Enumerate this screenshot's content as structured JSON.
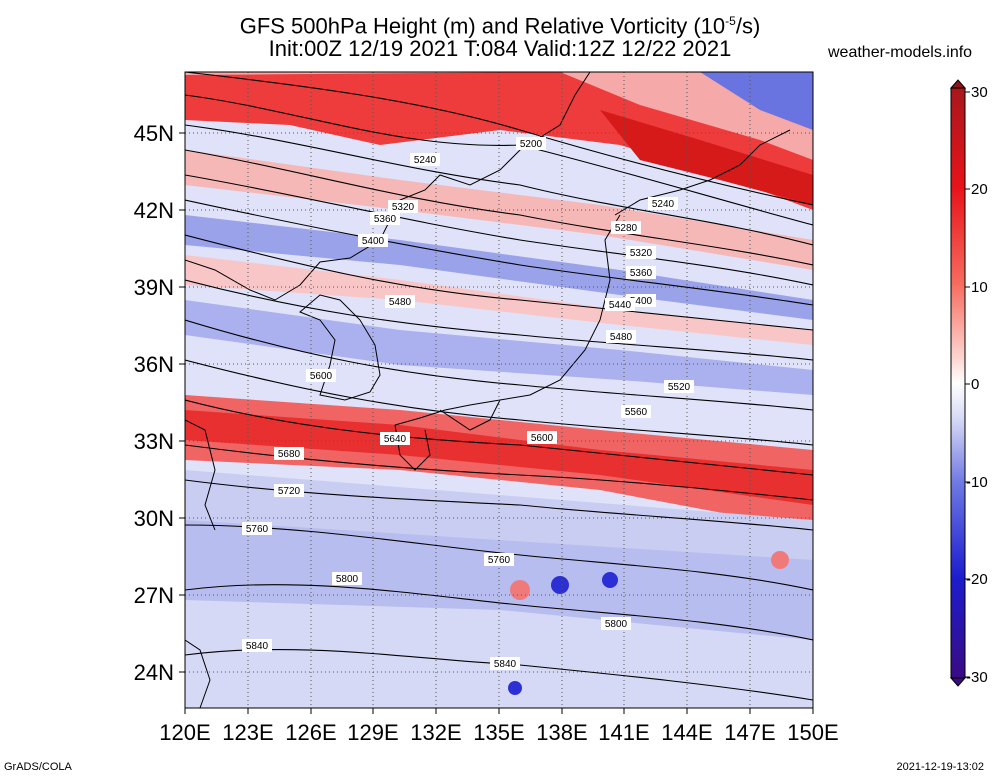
{
  "title": {
    "line1_prefix": "GFS 500hPa Height (m) and Relative Vorticity (10",
    "line1_exp": "-5",
    "line1_suffix": "/s)",
    "line2": "Init:00Z 12/19 2021 T:084 Valid:12Z 12/22 2021"
  },
  "site": "weather-models.info",
  "footer": {
    "left": "GrADS/COLA",
    "right": "2021-12-19-13:02"
  },
  "lat_labels": [
    "45N",
    "42N",
    "39N",
    "36N",
    "33N",
    "30N",
    "27N",
    "24N"
  ],
  "lon_labels": [
    "120E",
    "123E",
    "126E",
    "129E",
    "132E",
    "135E",
    "138E",
    "141E",
    "144E",
    "147E",
    "150E"
  ],
  "colorbar": {
    "ticks": [
      "30",
      "20",
      "10",
      "0",
      "-10",
      "-20",
      "-30"
    ],
    "colors": [
      "#b2182b",
      "#e31a1c",
      "#fb6a4a",
      "#fcbba1",
      "#ffffff",
      "#c6cbf0",
      "#7b83e6",
      "#2a2bd0",
      "#1a0f9a",
      "#3a0a7a"
    ]
  },
  "contours": {
    "labels": [
      "5200",
      "5240",
      "5240",
      "5280",
      "5320",
      "5320",
      "5360",
      "5360",
      "5400",
      "5400",
      "5440",
      "5480",
      "5480",
      "5520",
      "5560",
      "5600",
      "5600",
      "5640",
      "5680",
      "5720",
      "5760",
      "5760",
      "5800",
      "5800",
      "5840",
      "5840"
    ]
  }
}
